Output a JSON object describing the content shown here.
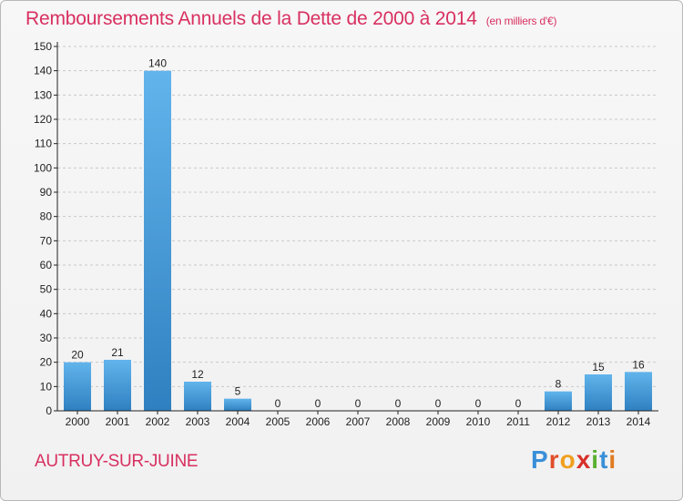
{
  "title": "Remboursements Annuels de la Dette de 2000 à 2014",
  "subtitle": "(en milliers d'€)",
  "commune": "AUTRUY-SUR-JUINE",
  "logo": {
    "letters": [
      "P",
      "r",
      "o",
      "x",
      "i",
      "t",
      "i"
    ],
    "colors": [
      "#3a8fd8",
      "#e04e2a",
      "#f0a020",
      "#d8302a",
      "#58b030",
      "#3a8fd8",
      "#e07a20"
    ]
  },
  "colors": {
    "bar_top": "#62b4ec",
    "bar_bottom": "#2f80c0",
    "axis": "#222222",
    "grid": "#c9c9c9",
    "text": "#222222"
  },
  "chart_data": {
    "type": "bar",
    "title": "Remboursements Annuels de la Dette de 2000 à 2014",
    "ylabel": "en milliers d'€",
    "xlabel": "",
    "categories": [
      "2000",
      "2001",
      "2002",
      "2003",
      "2004",
      "2005",
      "2006",
      "2007",
      "2008",
      "2009",
      "2010",
      "2011",
      "2012",
      "2013",
      "2014"
    ],
    "values": [
      20,
      21,
      140,
      12,
      5,
      0,
      0,
      0,
      0,
      0,
      0,
      0,
      8,
      15,
      16
    ],
    "ylim": [
      0,
      150
    ],
    "yticks": [
      0,
      10,
      20,
      30,
      40,
      50,
      60,
      70,
      80,
      90,
      100,
      110,
      120,
      130,
      140,
      150
    ],
    "grid": true,
    "data_labels": true
  }
}
